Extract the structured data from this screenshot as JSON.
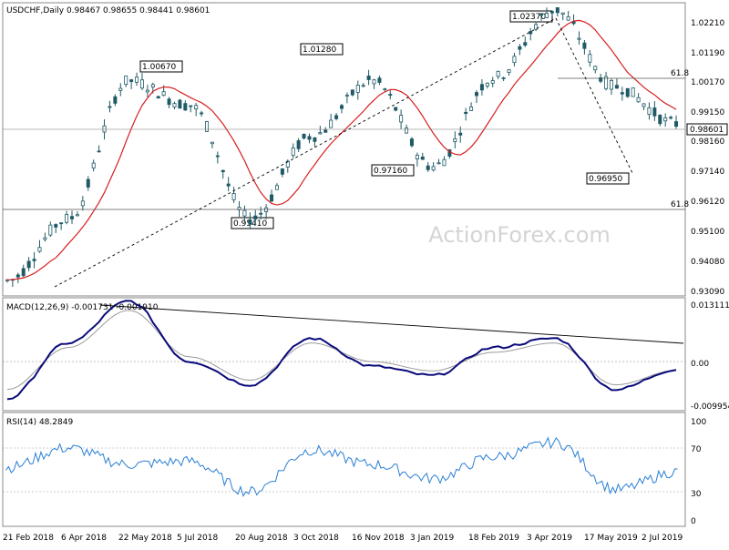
{
  "price_panel": {
    "header": "USDCHF,Daily  0.98467 0.98655 0.98441 0.98601",
    "current_price_label": "0.98601",
    "y_ticks": [
      "1.02210",
      "1.01190",
      "1.00170",
      "0.99150",
      "0.98160",
      "0.97140",
      "0.96120",
      "0.95100",
      "0.94080",
      "0.93090"
    ],
    "fib_upper_label": "61.8",
    "fib_lower_label": "61.8",
    "watermark": "ActionForex.com",
    "annotations": [
      {
        "label": "1.00670"
      },
      {
        "label": "1.01280"
      },
      {
        "label": "1.02370"
      },
      {
        "label": "0.95410"
      },
      {
        "label": "0.97160"
      },
      {
        "label": "0.96950"
      }
    ]
  },
  "macd_panel": {
    "header": "MACD(12,26,9) -0.001731 -0.001910",
    "y_ticks": [
      "0.013111",
      "0.00",
      "-0.009954"
    ]
  },
  "rsi_panel": {
    "header": "RSI(14) 48.2849",
    "y_ticks": [
      "100",
      "70",
      "30",
      "0"
    ]
  },
  "x_axis": {
    "labels": [
      "21 Feb 2018",
      "6 Apr 2018",
      "22 May 2018",
      "5 Jul 2018",
      "20 Aug 2018",
      "3 Oct 2018",
      "16 Nov 2018",
      "3 Jan 2019",
      "18 Feb 2019",
      "3 Apr 2019",
      "17 May 2019",
      "2 Jul 2019"
    ]
  },
  "colors": {
    "candles": "#1f5a66",
    "ma": "#d81e1e",
    "macd": "#0a0a7a",
    "signal": "#9a9a9a",
    "rsi": "#2a7fd4",
    "trend": "#000000"
  },
  "chart_data": [
    {
      "type": "line",
      "title": "USDCHF,Daily",
      "series": [
        {
          "name": "USDCHF",
          "x": [
            "21 Feb 2018",
            "6 Apr 2018",
            "22 May 2018",
            "5 Jul 2018",
            "20 Aug 2018",
            "3 Oct 2018",
            "16 Nov 2018",
            "3 Jan 2019",
            "18 Feb 2019",
            "3 Apr 2019",
            "17 May 2019",
            "2 Jul 2019"
          ],
          "values": [
            0.935,
            0.955,
            1.0,
            0.992,
            0.955,
            0.982,
            1.0,
            0.972,
            1.001,
            1.023,
            0.998,
            0.986
          ]
        }
      ],
      "ylim": [
        0.9309,
        1.0221
      ],
      "annotations": [
        1.0067,
        1.0128,
        1.0237,
        0.9541,
        0.9716,
        0.9695
      ]
    },
    {
      "type": "line",
      "title": "MACD(12,26,9)",
      "series": [
        {
          "name": "MACD",
          "values": [
            -0.008,
            0.004,
            0.013,
            0.0,
            -0.005,
            0.005,
            -0.001,
            -0.003,
            0.003,
            0.005,
            -0.006,
            -0.001731
          ]
        },
        {
          "name": "Signal",
          "values": [
            -0.006,
            0.003,
            0.011,
            0.001,
            -0.004,
            0.004,
            0.0,
            -0.002,
            0.002,
            0.004,
            -0.005,
            -0.00191
          ]
        }
      ],
      "ylim": [
        -0.009954,
        0.013111
      ]
    },
    {
      "type": "line",
      "title": "RSI(14)",
      "series": [
        {
          "name": "RSI",
          "values": [
            52,
            70,
            55,
            58,
            30,
            68,
            55,
            42,
            62,
            75,
            32,
            48.2849
          ]
        }
      ],
      "ylim": [
        0,
        100
      ]
    }
  ]
}
